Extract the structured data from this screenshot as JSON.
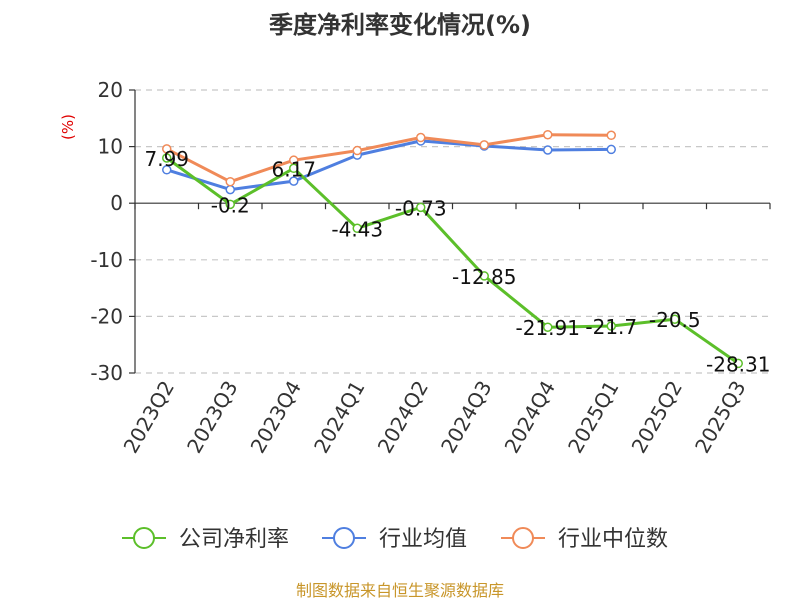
{
  "chart_data": {
    "type": "line",
    "title": "季度净利率变化情况(%)",
    "ylabel": "(%)",
    "xlabel": "",
    "ylim": [
      -30,
      20
    ],
    "yticks": [
      "20",
      "10",
      "0",
      "-10",
      "-20",
      "-30"
    ],
    "grid": true,
    "legend_position": "bottom",
    "categories": [
      "2023Q2",
      "2023Q3",
      "2023Q4",
      "2024Q1",
      "2024Q2",
      "2024Q3",
      "2024Q4",
      "2025Q1",
      "2025Q2",
      "2025Q3"
    ],
    "series": [
      {
        "name": "公司净利率",
        "color": "#5cbf2a",
        "values": [
          7.99,
          -0.2,
          6.17,
          -4.43,
          -0.73,
          -12.85,
          -21.91,
          -21.7,
          -20.5,
          -28.31
        ],
        "labels": [
          "7.99",
          "-0.2",
          "6.17",
          "-4.43",
          "-0.73",
          "-12.85",
          "-21.91",
          "-21.7",
          "-20.5",
          "-28.31"
        ]
      },
      {
        "name": "行业均值",
        "color": "#4f7fe0",
        "values": [
          5.9,
          2.4,
          3.9,
          8.5,
          11.0,
          10.1,
          9.4,
          9.5,
          null,
          null
        ]
      },
      {
        "name": "行业中位数",
        "color": "#f08a58",
        "values": [
          9.6,
          3.8,
          7.6,
          9.3,
          11.6,
          10.3,
          12.1,
          12.0,
          null,
          null
        ]
      }
    ],
    "source": "制图数据来自恒生聚源数据库"
  }
}
